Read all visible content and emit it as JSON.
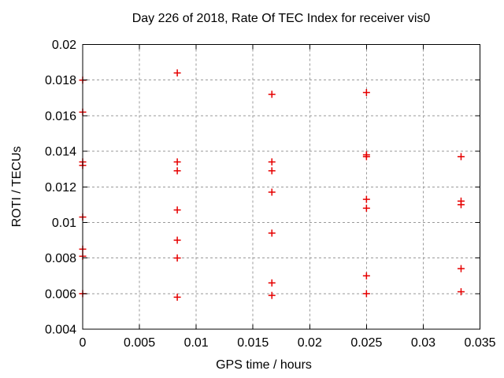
{
  "chart_data": {
    "type": "scatter",
    "title": "Day 226 of 2018, Rate Of TEC Index for receiver vis0",
    "xlabel": "GPS time / hours",
    "ylabel": "ROTI / TECUs",
    "xlim": [
      0,
      0.035
    ],
    "ylim": [
      0.004,
      0.02
    ],
    "xticks": [
      0,
      0.005,
      0.01,
      0.015,
      0.02,
      0.025,
      0.03,
      0.035
    ],
    "xtick_labels": [
      "0",
      "0.005",
      "0.01",
      "0.015",
      "0.02",
      "0.025",
      "0.03",
      "0.035"
    ],
    "yticks": [
      0.004,
      0.006,
      0.008,
      0.01,
      0.012,
      0.014,
      0.016,
      0.018,
      0.02
    ],
    "ytick_labels": [
      "0.004",
      "0.006",
      "0.008",
      "0.01",
      "0.012",
      "0.014",
      "0.016",
      "0.018",
      "0.02"
    ],
    "grid": true,
    "legend": "none",
    "marker": {
      "shape": "plus",
      "size": 9,
      "color": "#e60000"
    },
    "grid_color": "#9a9a9a",
    "border_color": "#000000",
    "series": [
      {
        "name": "ROTI",
        "points": [
          [
            0,
            0.018
          ],
          [
            0,
            0.0162
          ],
          [
            0,
            0.0134
          ],
          [
            0,
            0.0132
          ],
          [
            0,
            0.0103
          ],
          [
            0,
            0.0085
          ],
          [
            0,
            0.0081
          ],
          [
            0,
            0.006
          ],
          [
            0.008333,
            0.0184
          ],
          [
            0.008333,
            0.0134
          ],
          [
            0.008333,
            0.0129
          ],
          [
            0.008333,
            0.0107
          ],
          [
            0.008333,
            0.009
          ],
          [
            0.008333,
            0.008
          ],
          [
            0.008333,
            0.0058
          ],
          [
            0.016667,
            0.0172
          ],
          [
            0.016667,
            0.0134
          ],
          [
            0.016667,
            0.0129
          ],
          [
            0.016667,
            0.0117
          ],
          [
            0.016667,
            0.0094
          ],
          [
            0.016667,
            0.0066
          ],
          [
            0.016667,
            0.0059
          ],
          [
            0.025,
            0.0173
          ],
          [
            0.025,
            0.0138
          ],
          [
            0.025,
            0.0137
          ],
          [
            0.025,
            0.0113
          ],
          [
            0.025,
            0.0108
          ],
          [
            0.025,
            0.007
          ],
          [
            0.025,
            0.006
          ],
          [
            0.033333,
            0.0137
          ],
          [
            0.033333,
            0.0112
          ],
          [
            0.033333,
            0.011
          ],
          [
            0.033333,
            0.0074
          ],
          [
            0.033333,
            0.0061
          ]
        ]
      }
    ]
  }
}
